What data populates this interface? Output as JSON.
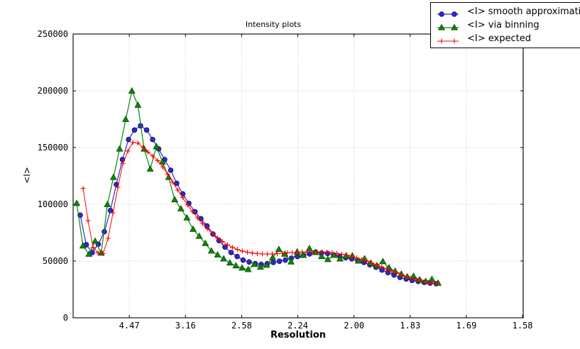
{
  "chart": {
    "title": "Intensity plots",
    "x_label": "Resolution",
    "y_label": "<I>",
    "background": "#ffffff",
    "grid_color": "#c4c4c4",
    "axis_color": "#000000",
    "legend": {
      "items": [
        {
          "label": "<I> smooth approximation",
          "marker": "circle",
          "color": "#2d28c8"
        },
        {
          "label": "<I> via binning",
          "marker": "triangle",
          "color": "#0b860b"
        },
        {
          "label": "<I> expected",
          "marker": "plus",
          "color": "#fa0000"
        }
      ]
    }
  },
  "chart_data": {
    "type": "line",
    "title": "Intensity plots",
    "xlabel": "Resolution",
    "ylabel": "<I>",
    "x_axis_note": "x axis is linear in 1/d^2 (inverse resolution squared); tick labels give resolution d in Angstrom",
    "x_tick_labels": [
      "4.47",
      "3.16",
      "2.58",
      "2.24",
      "2.00",
      "1.83",
      "1.69",
      "1.58"
    ],
    "x_tick_positions_inv_d_sq": [
      0.05,
      0.1,
      0.15,
      0.2,
      0.25,
      0.3,
      0.35,
      0.4
    ],
    "x_range_inv_d_sq": [
      0,
      0.4006
    ],
    "y_ticks": [
      0,
      50000,
      100000,
      150000,
      200000,
      250000
    ],
    "ylim": [
      0,
      250000
    ],
    "grid": "dotted",
    "legend_position": "upper right, box overlapping above plot",
    "series": [
      {
        "name": "<I> smooth approximation",
        "color": "#2d28c8",
        "marker": "circle",
        "marker_edge": "#14106e",
        "x": [
          0.0063,
          0.0117,
          0.017,
          0.0224,
          0.0278,
          0.0332,
          0.0385,
          0.0439,
          0.0493,
          0.0546,
          0.06,
          0.0654,
          0.0708,
          0.0761,
          0.0815,
          0.0869,
          0.0922,
          0.0976,
          0.103,
          0.1084,
          0.1137,
          0.1191,
          0.1245,
          0.1298,
          0.1352,
          0.1406,
          0.146,
          0.1513,
          0.1567,
          0.1621,
          0.1674,
          0.1728,
          0.1782,
          0.1836,
          0.1889,
          0.1943,
          0.1997,
          0.205,
          0.2104,
          0.2158,
          0.2212,
          0.2265,
          0.2319,
          0.2373,
          0.2426,
          0.248,
          0.2534,
          0.2588,
          0.2641,
          0.2695,
          0.2749,
          0.2802,
          0.2856,
          0.291,
          0.2964,
          0.3017,
          0.3071,
          0.3125,
          0.3178,
          0.3232
        ],
        "y": [
          90400,
          64400,
          57500,
          64800,
          75800,
          94600,
          117500,
          139400,
          157100,
          165400,
          169200,
          165400,
          157100,
          148800,
          139400,
          130000,
          118500,
          109200,
          100800,
          93500,
          87300,
          81000,
          73800,
          68000,
          62300,
          57500,
          54000,
          50800,
          49200,
          47700,
          47000,
          47700,
          48800,
          49800,
          50800,
          52500,
          54000,
          55000,
          56300,
          57800,
          57000,
          56700,
          55400,
          54000,
          52900,
          51900,
          50400,
          48800,
          46700,
          44600,
          42100,
          39800,
          37700,
          35600,
          34200,
          32900,
          32100,
          31200,
          30600,
          30000
        ]
      },
      {
        "name": "<I> via binning",
        "color": "#0b860b",
        "marker": "triangle_up",
        "marker_edge": "#054d05",
        "x": [
          0.0032,
          0.0087,
          0.0141,
          0.0196,
          0.025,
          0.0305,
          0.0359,
          0.0414,
          0.0468,
          0.0523,
          0.0577,
          0.0632,
          0.0686,
          0.0741,
          0.0795,
          0.085,
          0.0904,
          0.0959,
          0.1013,
          0.1068,
          0.1122,
          0.1177,
          0.1231,
          0.1286,
          0.134,
          0.1395,
          0.1449,
          0.1504,
          0.1558,
          0.1613,
          0.1667,
          0.1722,
          0.1776,
          0.1831,
          0.1885,
          0.194,
          0.1994,
          0.2049,
          0.2103,
          0.2158,
          0.2212,
          0.2267,
          0.2321,
          0.2376,
          0.243,
          0.2485,
          0.2539,
          0.2594,
          0.2648,
          0.2703,
          0.2757,
          0.2812,
          0.2866,
          0.2921,
          0.2975,
          0.303,
          0.3084,
          0.3139,
          0.3193,
          0.3248
        ],
        "y": [
          100800,
          63300,
          56000,
          67500,
          57000,
          99800,
          123700,
          148700,
          174800,
          199800,
          187300,
          148700,
          131000,
          150800,
          137300,
          123700,
          104000,
          96000,
          88000,
          78000,
          71800,
          65500,
          58800,
          55400,
          51900,
          48300,
          45800,
          43800,
          42500,
          47000,
          44600,
          46300,
          53000,
          60200,
          56000,
          49200,
          58000,
          55000,
          61000,
          57500,
          54000,
          51300,
          55000,
          51900,
          54600,
          54600,
          50000,
          52000,
          48000,
          46000,
          49500,
          44000,
          41000,
          38500,
          36000,
          36500,
          33500,
          32000,
          33800,
          30500
        ]
      },
      {
        "name": "<I> expected",
        "color": "#fa0000",
        "marker": "plus",
        "marker_edge": "#fa0000",
        "x": [
          0.0089,
          0.0133,
          0.0178,
          0.0222,
          0.0266,
          0.0311,
          0.0355,
          0.0399,
          0.0443,
          0.0488,
          0.0532,
          0.0576,
          0.0621,
          0.0665,
          0.0709,
          0.0753,
          0.0798,
          0.0842,
          0.0886,
          0.0931,
          0.0975,
          0.1019,
          0.1064,
          0.1108,
          0.1152,
          0.1196,
          0.1241,
          0.1285,
          0.1329,
          0.1374,
          0.1418,
          0.1462,
          0.1506,
          0.1551,
          0.1595,
          0.1639,
          0.1684,
          0.1728,
          0.1772,
          0.1816,
          0.1861,
          0.1905,
          0.1949,
          0.1994,
          0.2038,
          0.2082,
          0.2126,
          0.2171,
          0.2215,
          0.2259,
          0.2304,
          0.2348,
          0.2392,
          0.2436,
          0.2481,
          0.2525,
          0.2569,
          0.2614,
          0.2658,
          0.2702,
          0.2746,
          0.2791,
          0.2835,
          0.2879,
          0.2924,
          0.2968,
          0.3012,
          0.3056,
          0.3101,
          0.3145,
          0.3189,
          0.3234
        ],
        "y": [
          114000,
          85600,
          62000,
          57200,
          56600,
          70000,
          92500,
          115000,
          136000,
          147000,
          154500,
          154000,
          150000,
          146000,
          142500,
          138500,
          133000,
          126500,
          119500,
          112500,
          106000,
          99500,
          93500,
          88000,
          83000,
          78500,
          74300,
          70500,
          67200,
          64300,
          62000,
          60200,
          58800,
          57800,
          57100,
          56600,
          56300,
          56200,
          56300,
          56500,
          56800,
          57200,
          57500,
          57800,
          58000,
          58100,
          58100,
          58100,
          58000,
          57800,
          57400,
          56800,
          56000,
          55100,
          54000,
          52800,
          51400,
          49900,
          48300,
          46600,
          44900,
          43100,
          41300,
          39600,
          37900,
          36300,
          34800,
          33500,
          32400,
          31500,
          30800,
          30300
        ]
      }
    ]
  }
}
